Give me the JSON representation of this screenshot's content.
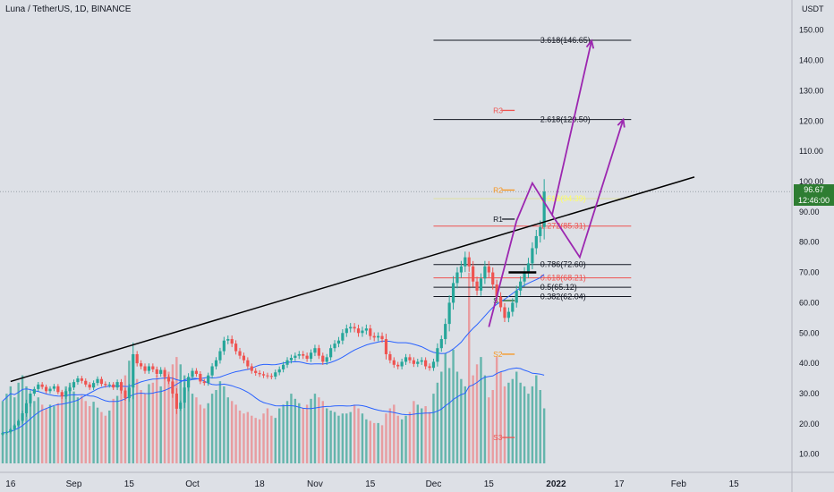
{
  "header": {
    "title": "Luna / TetherUS, 1D, BINANCE"
  },
  "axis": {
    "unit": "USDT"
  },
  "last_price": {
    "value": "96.67",
    "countdown": "12:46:00"
  },
  "chart_data": {
    "type": "candlestick",
    "title": "Luna / TetherUS, 1D, BINANCE",
    "ylabel": "USDT",
    "ylim": [
      4,
      157
    ],
    "y_ticks": [
      10,
      20,
      30,
      40,
      50,
      60,
      70,
      80,
      90,
      100,
      110,
      120,
      130,
      140,
      150
    ],
    "y_tick_labels": [
      "10.00",
      "20.00",
      "30.00",
      "40.00",
      "50.00",
      "60.00",
      "70.00",
      "80.00",
      "90.00",
      "100.00",
      "110.00",
      "120.00",
      "130.00",
      "140.00",
      "150.00"
    ],
    "x_tick_labels": [
      {
        "date": "2021-08-16",
        "label": "16"
      },
      {
        "date": "2021-09-01",
        "label": "Sep"
      },
      {
        "date": "2021-09-15",
        "label": "15"
      },
      {
        "date": "2021-10-01",
        "label": "Oct"
      },
      {
        "date": "2021-10-18",
        "label": "18"
      },
      {
        "date": "2021-11-01",
        "label": "Nov"
      },
      {
        "date": "2021-11-15",
        "label": "15"
      },
      {
        "date": "2021-12-01",
        "label": "Dec"
      },
      {
        "date": "2021-12-15",
        "label": "15"
      },
      {
        "date": "2022-01-01",
        "label": "2022",
        "bold": true
      },
      {
        "date": "2022-01-17",
        "label": "17"
      },
      {
        "date": "2022-02-01",
        "label": "Feb"
      },
      {
        "date": "2022-02-15",
        "label": "15"
      }
    ],
    "x_range": [
      "2021-08-14",
      "2022-03-01"
    ],
    "series": {
      "start_date": "2021-08-14",
      "close": [
        17.0,
        17.3,
        18.2,
        19.5,
        21.0,
        23.5,
        26.8,
        30.0,
        31.5,
        33.0,
        32.2,
        30.8,
        31.6,
        32.4,
        30.5,
        29.0,
        30.8,
        32.0,
        33.8,
        35.0,
        34.2,
        33.0,
        32.0,
        33.5,
        34.8,
        33.2,
        32.8,
        33.0,
        32.0,
        33.8,
        31.0,
        28.5,
        32.0,
        43.0,
        40.0,
        39.0,
        37.5,
        39.0,
        38.0,
        36.5,
        37.8,
        35.5,
        34.0,
        30.0,
        25.0,
        27.0,
        32.0,
        35.5,
        37.5,
        36.5,
        34.0,
        33.5,
        36.0,
        39.0,
        41.0,
        44.0,
        47.5,
        48.0,
        46.5,
        44.0,
        42.5,
        41.0,
        39.0,
        37.5,
        36.8,
        36.4,
        36.0,
        35.8,
        35.6,
        37.0,
        38.0,
        39.5,
        41.0,
        41.8,
        42.5,
        43.0,
        42.5,
        41.5,
        43.5,
        45.0,
        42.5,
        40.5,
        42.0,
        45.0,
        46.5,
        47.5,
        50.0,
        51.5,
        52.0,
        51.5,
        50.0,
        50.8,
        51.5,
        49.0,
        48.5,
        49.0,
        48.0,
        43.0,
        41.0,
        39.5,
        39.0,
        40.5,
        42.0,
        41.0,
        39.8,
        40.5,
        41.0,
        39.0,
        38.5,
        40.5,
        45.0,
        48.0,
        53.0,
        60.0,
        66.5,
        70.0,
        72.0,
        75.0,
        72.0,
        67.0,
        64.0,
        68.0,
        72.0,
        70.0,
        66.0,
        62.0,
        58.5,
        55.0,
        57.0,
        60.0,
        64.0,
        67.0,
        70.0,
        73.0,
        78.0,
        82.0,
        85.0,
        96.7
      ],
      "volume": [
        8.5,
        9.5,
        10.5,
        9.0,
        11.0,
        12.0,
        10.5,
        9.5,
        8.5,
        9.0,
        8.0,
        7.5,
        8.0,
        7.8,
        8.2,
        9.0,
        10.5,
        11.0,
        9.8,
        9.0,
        9.2,
        8.5,
        7.8,
        8.4,
        7.6,
        7.0,
        6.5,
        7.2,
        8.8,
        9.2,
        10.5,
        12.0,
        14.0,
        13.0,
        11.5,
        10.0,
        9.5,
        10.8,
        11.0,
        12.0,
        10.5,
        11.8,
        12.5,
        13.5,
        14.5,
        13.5,
        12.0,
        10.5,
        9.5,
        9.0,
        8.0,
        7.5,
        8.2,
        9.5,
        10.0,
        11.2,
        10.5,
        9.0,
        8.5,
        8.0,
        7.2,
        6.8,
        7.0,
        6.5,
        6.2,
        6.0,
        6.8,
        7.5,
        6.5,
        6.2,
        7.5,
        8.0,
        8.5,
        9.5,
        8.8,
        8.2,
        7.5,
        8.0,
        8.8,
        9.5,
        9.0,
        8.5,
        7.5,
        7.2,
        7.0,
        6.5,
        6.8,
        6.8,
        7.0,
        8.0,
        7.5,
        6.8,
        6.0,
        5.8,
        5.5,
        5.5,
        5.2,
        6.8,
        7.5,
        8.0,
        6.5,
        6.0,
        6.5,
        7.0,
        8.5,
        8.0,
        7.5,
        7.8,
        7.0,
        9.5,
        11.0,
        12.5,
        15.0,
        13.0,
        15.5,
        12.5,
        11.5,
        10.5,
        26.0,
        12.0,
        13.5,
        14.5,
        12.0,
        9.0,
        10.0,
        14.5,
        12.5,
        10.5,
        11.0,
        11.5,
        12.5,
        11.0,
        10.5,
        9.5,
        10.5,
        12.0,
        10.0,
        7.5
      ]
    },
    "overlays": {
      "ma_price_note": "20-day moving average on price (blue)",
      "ma_volume_note": "moving average on volume (blue)"
    },
    "fib_levels": [
      {
        "label": "3.618(146.65)",
        "value": 146.65,
        "color": "#131722"
      },
      {
        "label": "2.618(120.50)",
        "value": 120.5,
        "color": "#131722"
      },
      {
        "label": "1.618(94.39)",
        "value": 94.39,
        "color": "#e0e0a0",
        "text_color": "#ffff66"
      },
      {
        "label": "1.272(85.31)",
        "value": 85.31,
        "color": "#ef5350",
        "text_color": "#ef5350"
      },
      {
        "label": "0.786(72.60)",
        "value": 72.6,
        "color": "#131722"
      },
      {
        "label": "0.618(68.21)",
        "value": 68.21,
        "color": "#ef5350",
        "text_color": "#ef5350"
      },
      {
        "label": "0.5(65.12)",
        "value": 65.12,
        "color": "#131722"
      },
      {
        "label": "0.382(62.04)",
        "value": 62.04,
        "color": "#131722"
      }
    ],
    "pivots": [
      {
        "label": "R3",
        "value": 123.5,
        "color": "#ef5350"
      },
      {
        "label": "R2",
        "value": 97.2,
        "color": "#f7941d"
      },
      {
        "label": "R1",
        "value": 87.6,
        "color": "#131722"
      },
      {
        "label": "S1",
        "value": 60.7,
        "color": "#1b5e20"
      },
      {
        "label": "S2",
        "value": 43.0,
        "color": "#f7941d"
      },
      {
        "label": "S3",
        "value": 15.5,
        "color": "#ef5350"
      }
    ],
    "trendline": {
      "from": {
        "date": "2021-08-16",
        "value": 34.0
      },
      "to": {
        "date": "2022-02-05",
        "value": 101.5
      }
    },
    "projection_path": [
      {
        "date": "2021-12-22",
        "value": 87.0
      },
      {
        "date": "2021-12-26",
        "value": 99.5
      },
      {
        "date": "2021-12-31",
        "value": 89.0
      },
      {
        "date": "2022-01-10",
        "value": 146.5
      }
    ],
    "projection_path_2": [
      {
        "date": "2021-12-31",
        "value": 89.0
      },
      {
        "date": "2022-01-07",
        "value": 75.0
      },
      {
        "date": "2022-01-18",
        "value": 120.5
      }
    ],
    "projection_start": [
      {
        "date": "2021-12-15",
        "value": 52.0
      },
      {
        "date": "2021-12-22",
        "value": 87.0
      }
    ],
    "markers": [
      {
        "date_from": "2021-12-20",
        "date_to": "2021-12-27",
        "value": 70.0
      }
    ],
    "last_price_line": 96.67,
    "colors": {
      "up": "#26a69a",
      "down": "#ef5350",
      "volume_up": "#64b5ac",
      "volume_down": "#e89ca0",
      "ma": "#2962ff",
      "projection": "#9c27b0",
      "trend": "#000000"
    }
  }
}
